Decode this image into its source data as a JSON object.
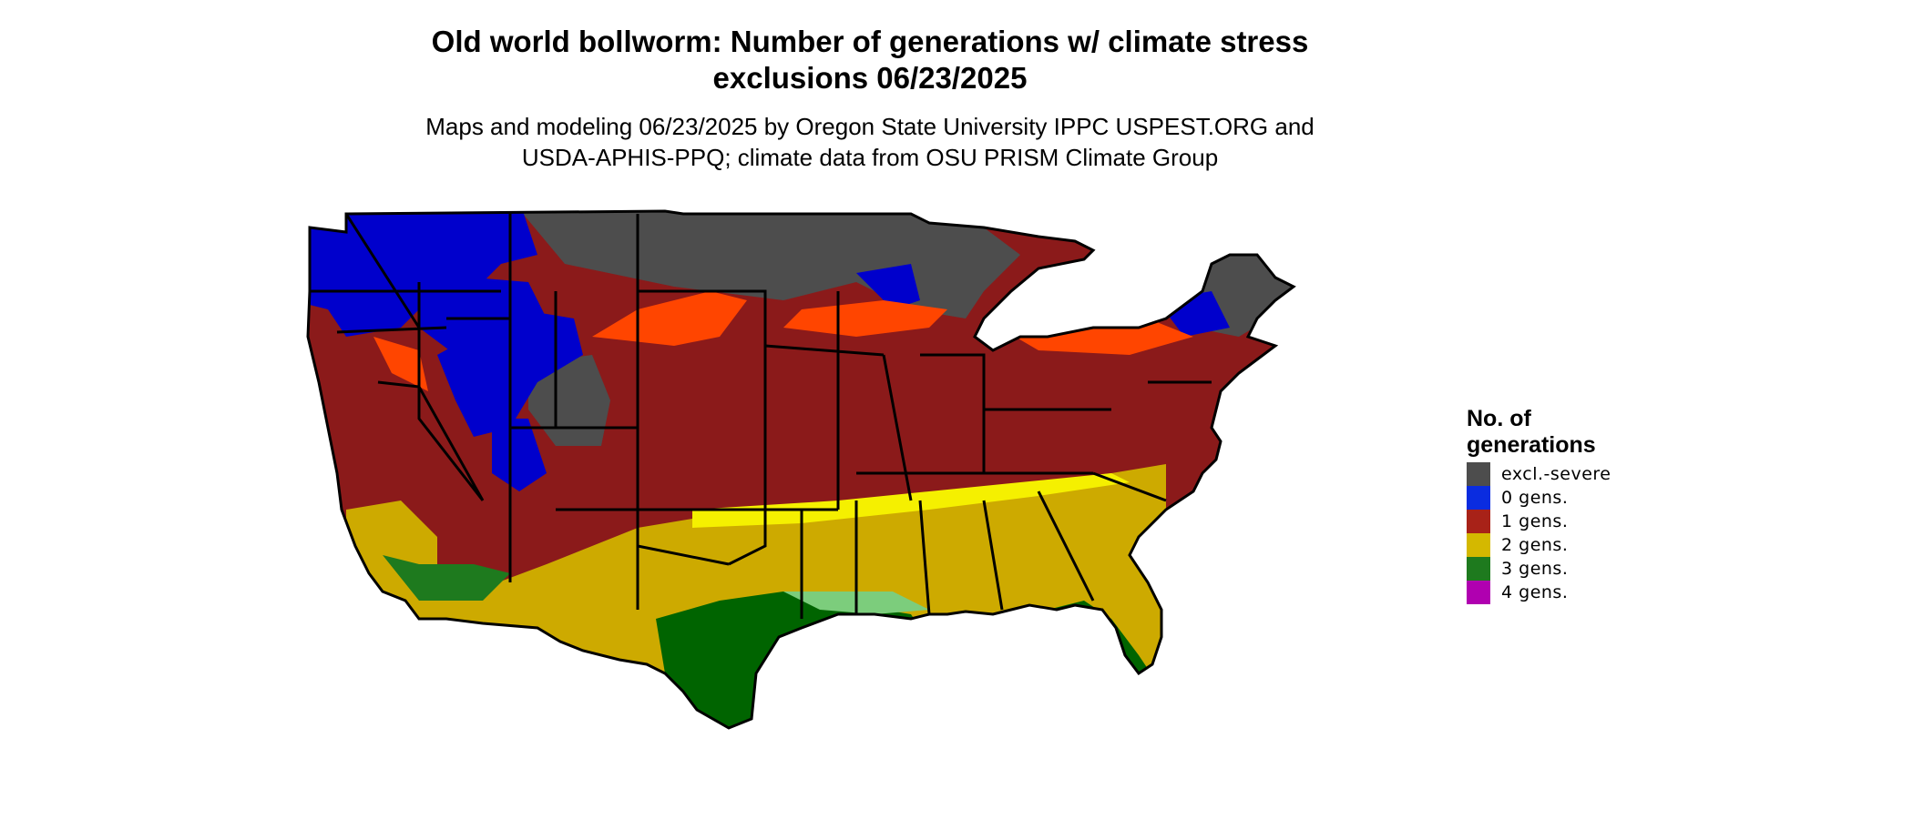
{
  "title_line1": "Old world bollworm: Number of generations w/ climate stress",
  "title_line2": "exclusions 06/23/2025",
  "subtitle_line1": "Maps and modeling 06/23/2025 by Oregon State University IPPC USPEST.ORG and",
  "subtitle_line2": "USDA-APHIS-PPQ; climate data from OSU PRISM Climate Group",
  "legend": {
    "title_line1": "No. of",
    "title_line2": "generations",
    "items": [
      {
        "label": "excl.-severe",
        "color": "#4d4d4d"
      },
      {
        "label": "0 gens.",
        "color": "#0a2ce0"
      },
      {
        "label": "1 gens.",
        "color": "#a82218"
      },
      {
        "label": "2 gens.",
        "color": "#d4b800"
      },
      {
        "label": "3 gens.",
        "color": "#1e7a1e"
      },
      {
        "label": "4 gens.",
        "color": "#b000b0"
      }
    ]
  },
  "map_colors": {
    "excl_severe": "#4d4d4d",
    "zero_gens": "#0000cc",
    "one_gens": "#8b1a1a",
    "one_gens_orange": "#ff4500",
    "two_gens": "#cdaa00",
    "two_gens_yellow": "#f5f000",
    "three_gens": "#006400",
    "three_gens_light": "#7ccd7c",
    "four_gens": "#e000e0"
  }
}
